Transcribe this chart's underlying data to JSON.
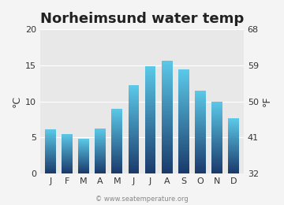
{
  "months": [
    "J",
    "F",
    "M",
    "A",
    "M",
    "J",
    "J",
    "A",
    "S",
    "O",
    "N",
    "D"
  ],
  "values_c": [
    6.1,
    5.5,
    4.8,
    6.2,
    9.0,
    12.2,
    14.9,
    15.7,
    14.4,
    11.5,
    10.0,
    7.6
  ],
  "title": "Norheimsund water temp",
  "ylabel_left": "°C",
  "ylabel_right": "°F",
  "ylim_c": [
    0,
    20
  ],
  "yticks_c": [
    0,
    5,
    10,
    15,
    20
  ],
  "yticks_f": [
    32,
    41,
    50,
    59,
    68
  ],
  "bar_color_top": "#5bc8e8",
  "bar_color_bottom": "#1a3a6b",
  "background_color": "#e8e8e8",
  "fig_facecolor": "#f4f4f4",
  "watermark": "© www.seatemperature.org",
  "title_fontsize": 13,
  "tick_fontsize": 8,
  "label_fontsize": 9,
  "bar_width": 0.65,
  "n_grad": 100
}
